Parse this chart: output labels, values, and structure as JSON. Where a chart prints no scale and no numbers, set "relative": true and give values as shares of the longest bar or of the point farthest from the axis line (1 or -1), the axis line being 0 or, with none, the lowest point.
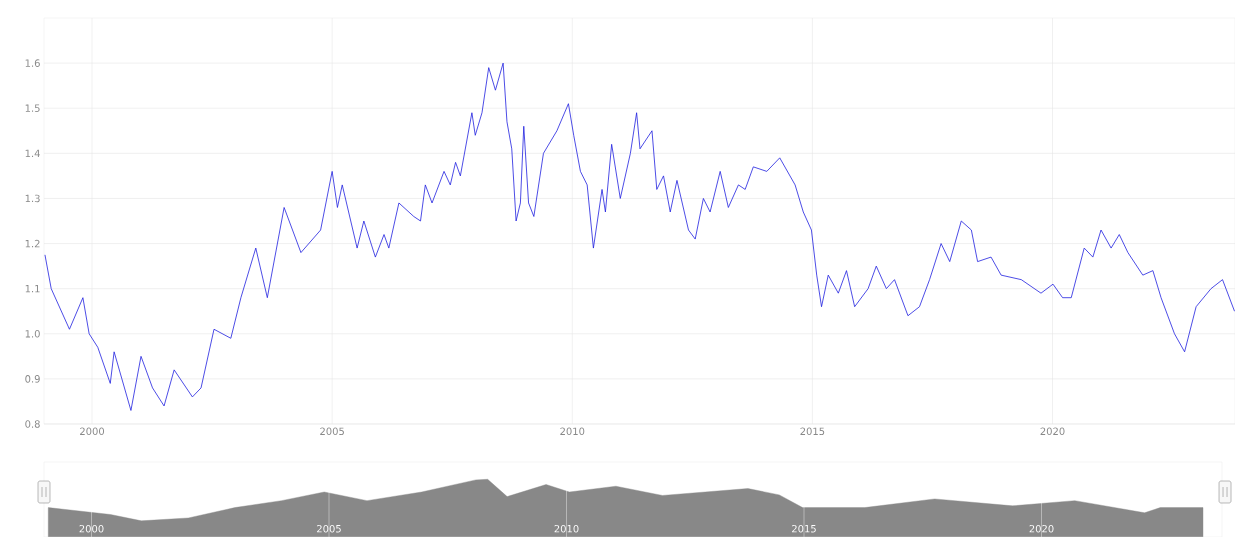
{
  "chart_data": [
    {
      "type": "line",
      "color": "#1f1fe0",
      "xlim": [
        1999.0,
        2023.8
      ],
      "ylim": [
        0.8,
        1.7
      ],
      "xticks": [
        2000,
        2005,
        2010,
        2015,
        2020
      ],
      "yticks": [
        0.8,
        0.9,
        {
          "value": 1.0,
          "label": "1.0"
        },
        1.1,
        1.2,
        1.3,
        1.4,
        1.5,
        1.6
      ],
      "grid": true,
      "x": [
        1999.02,
        1999.15,
        1999.53,
        1999.81,
        1999.94,
        2000.12,
        2000.38,
        2000.46,
        2000.81,
        2001.02,
        2001.26,
        2001.5,
        2001.71,
        2002.09,
        2002.27,
        2002.54,
        2002.89,
        2003.1,
        2003.41,
        2003.65,
        2004.0,
        2004.35,
        2004.76,
        2005.0,
        2005.11,
        2005.21,
        2005.52,
        2005.66,
        2005.9,
        2006.08,
        2006.18,
        2006.39,
        2006.7,
        2006.84,
        2006.94,
        2007.08,
        2007.33,
        2007.46,
        2007.57,
        2007.67,
        2007.91,
        2007.98,
        2008.12,
        2008.26,
        2008.4,
        2008.56,
        2008.64,
        2008.74,
        2008.83,
        2008.92,
        2008.99,
        2009.09,
        2009.2,
        2009.4,
        2009.68,
        2009.92,
        2010.03,
        2010.17,
        2010.31,
        2010.44,
        2010.62,
        2010.69,
        2010.82,
        2011.0,
        2011.21,
        2011.34,
        2011.41,
        2011.66,
        2011.76,
        2011.9,
        2012.04,
        2012.18,
        2012.42,
        2012.56,
        2012.73,
        2012.87,
        2013.08,
        2013.25,
        2013.46,
        2013.6,
        2013.77,
        2014.05,
        2014.32,
        2014.64,
        2014.81,
        2014.98,
        2015.09,
        2015.19,
        2015.33,
        2015.54,
        2015.71,
        2015.88,
        2016.16,
        2016.33,
        2016.54,
        2016.71,
        2016.99,
        2017.23,
        2017.44,
        2017.68,
        2017.86,
        2018.1,
        2018.31,
        2018.44,
        2018.72,
        2018.93,
        2019.35,
        2019.76,
        2020.01,
        2020.21,
        2020.39,
        2020.66,
        2020.84,
        2021.01,
        2021.22,
        2021.39,
        2021.57,
        2021.88,
        2022.09,
        2022.26,
        2022.54,
        2022.75,
        2022.99,
        2023.3,
        2023.54,
        2023.79
      ],
      "values": [
        1.175,
        1.1,
        1.01,
        1.08,
        1.0,
        0.97,
        0.89,
        0.96,
        0.83,
        0.95,
        0.88,
        0.84,
        0.92,
        0.86,
        0.88,
        1.01,
        0.99,
        1.08,
        1.19,
        1.08,
        1.28,
        1.18,
        1.23,
        1.36,
        1.28,
        1.33,
        1.19,
        1.25,
        1.17,
        1.22,
        1.19,
        1.29,
        1.26,
        1.25,
        1.33,
        1.29,
        1.36,
        1.33,
        1.38,
        1.35,
        1.49,
        1.44,
        1.49,
        1.59,
        1.54,
        1.6,
        1.47,
        1.41,
        1.25,
        1.29,
        1.46,
        1.29,
        1.26,
        1.4,
        1.45,
        1.51,
        1.44,
        1.36,
        1.33,
        1.19,
        1.32,
        1.27,
        1.42,
        1.3,
        1.4,
        1.49,
        1.41,
        1.45,
        1.32,
        1.35,
        1.27,
        1.34,
        1.23,
        1.21,
        1.3,
        1.27,
        1.36,
        1.28,
        1.33,
        1.32,
        1.37,
        1.36,
        1.39,
        1.33,
        1.27,
        1.23,
        1.13,
        1.06,
        1.13,
        1.09,
        1.14,
        1.06,
        1.1,
        1.15,
        1.1,
        1.12,
        1.04,
        1.06,
        1.12,
        1.2,
        1.16,
        1.25,
        1.23,
        1.16,
        1.17,
        1.13,
        1.12,
        1.09,
        1.11,
        1.08,
        1.08,
        1.19,
        1.17,
        1.23,
        1.19,
        1.22,
        1.18,
        1.13,
        1.14,
        1.08,
        1.0,
        0.96,
        1.06,
        1.1,
        1.12,
        1.05
      ]
    },
    {
      "type": "area",
      "relative": true,
      "grid": "x",
      "color": "#888888",
      "xlim": [
        1999.0,
        2023.8
      ],
      "xticks": [
        2000,
        2005,
        2010,
        2015,
        2020
      ],
      "x": [
        1999.09,
        2000.4,
        2001.05,
        2002.04,
        2003.02,
        2004.0,
        2004.9,
        2005.8,
        2006.95,
        2008.09,
        2008.34,
        2008.75,
        2009.57,
        2010.06,
        2011.04,
        2012.02,
        2013.82,
        2014.48,
        2014.97,
        2016.28,
        2017.75,
        2019.39,
        2020.7,
        2022.17,
        2022.5,
        2023.4
      ],
      "values": [
        0.51,
        0.39,
        0.28,
        0.33,
        0.51,
        0.63,
        0.78,
        0.63,
        0.78,
        0.99,
        1.0,
        0.7,
        0.91,
        0.78,
        0.88,
        0.72,
        0.84,
        0.73,
        0.51,
        0.51,
        0.66,
        0.54,
        0.63,
        0.42,
        0.51,
        0.51
      ]
    }
  ]
}
